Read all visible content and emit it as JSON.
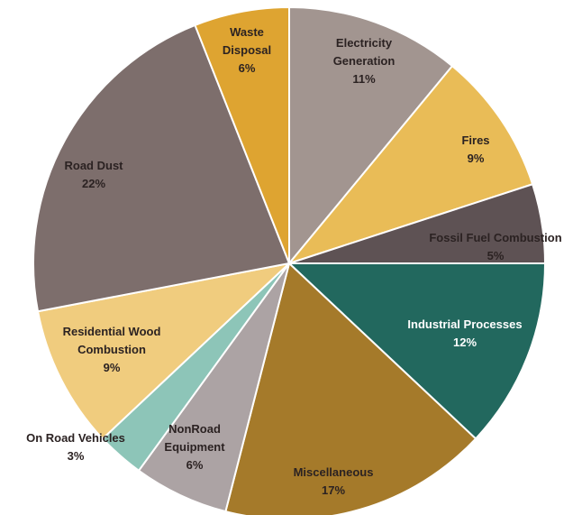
{
  "chart_data": {
    "type": "pie",
    "title": "",
    "start_angle_deg": 0,
    "direction": "clockwise",
    "slices": [
      {
        "label": [
          "Electricity",
          "Generation"
        ],
        "percent_text": "11%",
        "value": 11,
        "color": "#a29590"
      },
      {
        "label": [
          "Fires"
        ],
        "percent_text": "9%",
        "value": 9,
        "color": "#e9bc57"
      },
      {
        "label": [
          "Fossil Fuel Combustion"
        ],
        "percent_text": "5%",
        "value": 5,
        "color": "#5e5254"
      },
      {
        "label": [
          "Industrial Processes"
        ],
        "percent_text": "12%",
        "value": 12,
        "color": "#22685e"
      },
      {
        "label": [
          "Miscellaneous"
        ],
        "percent_text": "17%",
        "value": 17,
        "color": "#a57a2a"
      },
      {
        "label": [
          "NonRoad",
          "Equipment"
        ],
        "percent_text": "6%",
        "value": 6,
        "color": "#aca3a4"
      },
      {
        "label": [
          "On Road Vehicles"
        ],
        "percent_text": "3%",
        "value": 3,
        "color": "#8dc5b8"
      },
      {
        "label": [
          "Residential Wood",
          "Combustion"
        ],
        "percent_text": "9%",
        "value": 9,
        "color": "#f0cc7e"
      },
      {
        "label": [
          "Road Dust"
        ],
        "percent_text": "22%",
        "value": 22,
        "color": "#7d6e6c"
      },
      {
        "label": [
          "Waste",
          "Disposal"
        ],
        "percent_text": "6%",
        "value": 6,
        "color": "#dea431"
      }
    ]
  }
}
